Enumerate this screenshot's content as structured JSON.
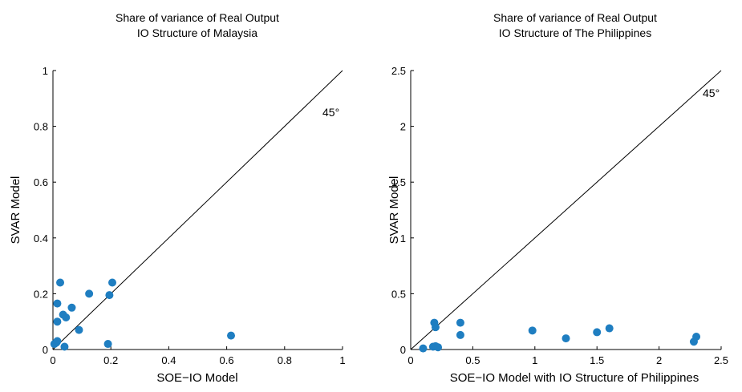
{
  "chart_data": [
    {
      "type": "scatter",
      "title": [
        "Share of variance of Real Output",
        "IO Structure of Malaysia"
      ],
      "xlabel": "SOE−IO Model",
      "ylabel": "SVAR Model",
      "xlim": [
        0,
        1
      ],
      "ylim": [
        0,
        1
      ],
      "xticks": [
        "0",
        "0.2",
        "0.4",
        "0.6",
        "0.8",
        "1"
      ],
      "yticks": [
        "0",
        "0.2",
        "0.4",
        "0.6",
        "0.8",
        "1"
      ],
      "grid": false,
      "reference_line": {
        "label": "45°",
        "from": [
          0,
          0
        ],
        "to": [
          1,
          1
        ]
      },
      "marker_color": "#1f7ec1",
      "points": [
        {
          "x": 0.005,
          "y": 0.02
        },
        {
          "x": 0.012,
          "y": 0.025
        },
        {
          "x": 0.015,
          "y": 0.03
        },
        {
          "x": 0.015,
          "y": 0.1
        },
        {
          "x": 0.015,
          "y": 0.165
        },
        {
          "x": 0.025,
          "y": 0.24
        },
        {
          "x": 0.035,
          "y": 0.125
        },
        {
          "x": 0.04,
          "y": 0.01
        },
        {
          "x": 0.045,
          "y": 0.115
        },
        {
          "x": 0.065,
          "y": 0.15
        },
        {
          "x": 0.09,
          "y": 0.07
        },
        {
          "x": 0.125,
          "y": 0.2
        },
        {
          "x": 0.19,
          "y": 0.02
        },
        {
          "x": 0.195,
          "y": 0.195
        },
        {
          "x": 0.205,
          "y": 0.24
        },
        {
          "x": 0.615,
          "y": 0.05
        }
      ]
    },
    {
      "type": "scatter",
      "title": [
        "Share of variance of Real Output",
        "IO Structure of The Philippines"
      ],
      "xlabel": "SOE−IO Model with IO Structure of Philippines",
      "ylabel": "SVAR Model",
      "xlim": [
        0,
        2.5
      ],
      "ylim": [
        0,
        2.5
      ],
      "xticks": [
        "0",
        "0.5",
        "1",
        "1.5",
        "2",
        "2.5"
      ],
      "yticks": [
        "0",
        "0.5",
        "1",
        "1.5",
        "2",
        "2.5"
      ],
      "grid": false,
      "reference_line": {
        "label": "45°",
        "from": [
          0,
          0
        ],
        "to": [
          2.5,
          2.5
        ]
      },
      "marker_color": "#1f7ec1",
      "points": [
        {
          "x": 0.1,
          "y": 0.01
        },
        {
          "x": 0.18,
          "y": 0.025
        },
        {
          "x": 0.2,
          "y": 0.03
        },
        {
          "x": 0.22,
          "y": 0.02
        },
        {
          "x": 0.19,
          "y": 0.24
        },
        {
          "x": 0.2,
          "y": 0.2
        },
        {
          "x": 0.4,
          "y": 0.24
        },
        {
          "x": 0.4,
          "y": 0.13
        },
        {
          "x": 0.98,
          "y": 0.17
        },
        {
          "x": 1.25,
          "y": 0.1
        },
        {
          "x": 1.5,
          "y": 0.155
        },
        {
          "x": 1.6,
          "y": 0.19
        },
        {
          "x": 2.28,
          "y": 0.07
        },
        {
          "x": 2.3,
          "y": 0.115
        }
      ]
    }
  ]
}
